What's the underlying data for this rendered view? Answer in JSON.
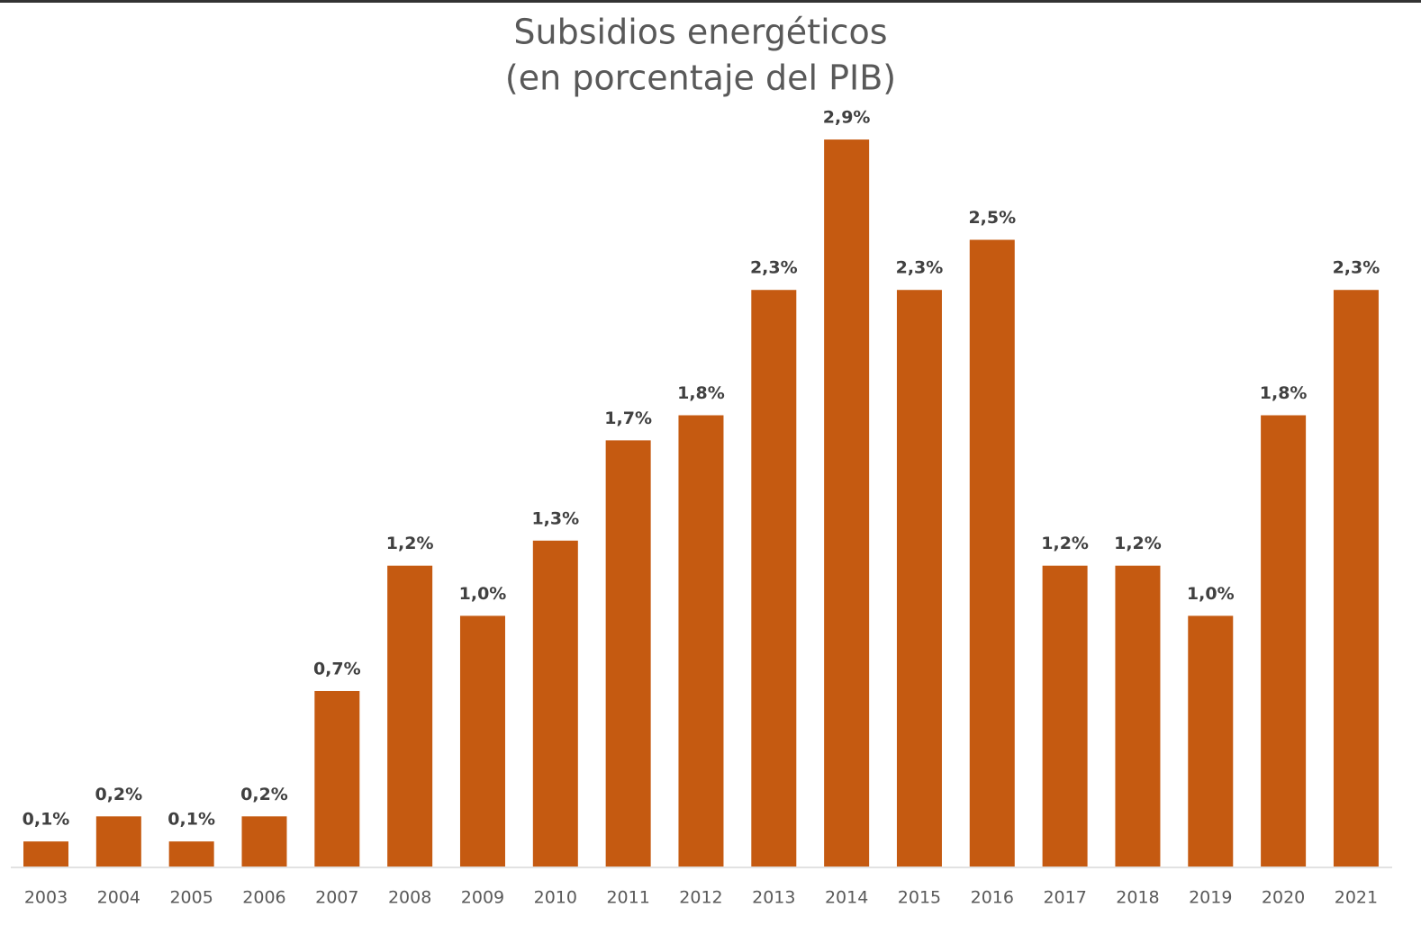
{
  "chart_data": {
    "type": "bar",
    "title": "Subsidios energéticos",
    "subtitle": "(en porcentaje del PIB)",
    "categories": [
      "2003",
      "2004",
      "2005",
      "2006",
      "2007",
      "2008",
      "2009",
      "2010",
      "2011",
      "2012",
      "2013",
      "2014",
      "2015",
      "2016",
      "2017",
      "2018",
      "2019",
      "2020",
      "2021"
    ],
    "values": [
      0.1,
      0.2,
      0.1,
      0.2,
      0.7,
      1.2,
      1.0,
      1.3,
      1.7,
      1.8,
      2.3,
      2.9,
      2.3,
      2.5,
      1.2,
      1.2,
      1.0,
      1.8,
      2.3
    ],
    "value_labels": [
      "0,1%",
      "0,2%",
      "0,1%",
      "0,2%",
      "0,7%",
      "1,2%",
      "1,0%",
      "1,3%",
      "1,7%",
      "1,8%",
      "2,3%",
      "2,9%",
      "2,3%",
      "2,5%",
      "1,2%",
      "1,2%",
      "1,0%",
      "1,8%",
      "2,3%"
    ],
    "color": "#c55a11"
  }
}
